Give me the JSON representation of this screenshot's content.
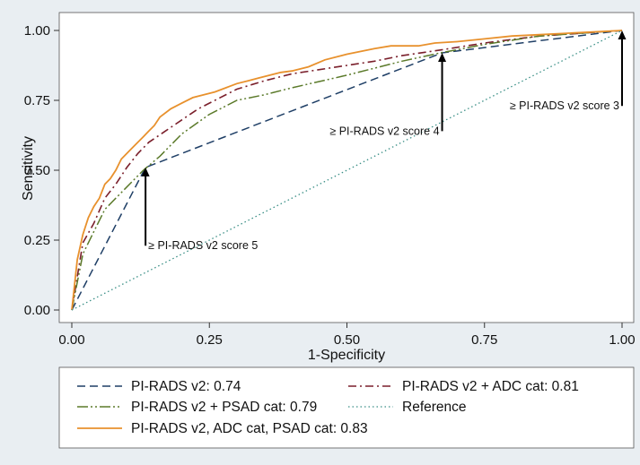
{
  "chart_data": {
    "type": "line",
    "xlabel": "1-Specificity",
    "ylabel": "Sensitivity",
    "xlim": [
      0,
      1
    ],
    "ylim": [
      0,
      1
    ],
    "xticks": [
      "0.00",
      "0.25",
      "0.50",
      "0.75",
      "1.00"
    ],
    "yticks": [
      "0.00",
      "0.25",
      "0.50",
      "0.75",
      "1.00"
    ],
    "grid": false,
    "legend_position": "bottom",
    "series": [
      {
        "name": "PI-RADS v2: 0.74",
        "color": "#1f3f66",
        "style": "dash",
        "x": [
          0,
          0.134,
          0.673,
          1.0
        ],
        "y": [
          0,
          0.51,
          0.92,
          1.0
        ]
      },
      {
        "name": "PI-RADS v2 + ADC cat: 0.81",
        "color": "#7a1f2b",
        "style": "dashdot",
        "x": [
          0,
          0.02,
          0.04,
          0.06,
          0.08,
          0.1,
          0.12,
          0.14,
          0.17,
          0.2,
          0.23,
          0.26,
          0.3,
          0.35,
          0.4,
          0.45,
          0.5,
          0.55,
          0.6,
          0.67,
          0.75,
          0.85,
          1.0
        ],
        "y": [
          0,
          0.24,
          0.31,
          0.4,
          0.45,
          0.51,
          0.56,
          0.6,
          0.64,
          0.68,
          0.72,
          0.75,
          0.79,
          0.82,
          0.845,
          0.86,
          0.875,
          0.89,
          0.91,
          0.93,
          0.955,
          0.98,
          1.0
        ]
      },
      {
        "name": "PI-RADS v2 + PSAD cat: 0.79",
        "color": "#5b7a2a",
        "style": "longdashdot",
        "x": [
          0,
          0.02,
          0.04,
          0.06,
          0.08,
          0.1,
          0.13,
          0.16,
          0.2,
          0.25,
          0.3,
          0.35,
          0.4,
          0.5,
          0.6,
          0.67,
          0.75,
          0.85,
          1.0
        ],
        "y": [
          0,
          0.2,
          0.28,
          0.36,
          0.4,
          0.44,
          0.5,
          0.55,
          0.63,
          0.7,
          0.75,
          0.77,
          0.795,
          0.84,
          0.89,
          0.92,
          0.95,
          0.98,
          1.0
        ]
      },
      {
        "name": "PI-RADS v2, ADC cat, PSAD cat: 0.83",
        "color": "#e8912d",
        "style": "solid",
        "x": [
          0,
          0.01,
          0.02,
          0.03,
          0.04,
          0.05,
          0.06,
          0.07,
          0.08,
          0.09,
          0.1,
          0.11,
          0.12,
          0.13,
          0.14,
          0.15,
          0.16,
          0.18,
          0.2,
          0.22,
          0.24,
          0.26,
          0.28,
          0.3,
          0.32,
          0.34,
          0.36,
          0.38,
          0.4,
          0.43,
          0.46,
          0.5,
          0.55,
          0.58,
          0.6,
          0.63,
          0.66,
          0.7,
          0.75,
          0.8,
          0.85,
          0.9,
          1.0
        ],
        "y": [
          0,
          0.18,
          0.27,
          0.33,
          0.37,
          0.4,
          0.45,
          0.47,
          0.5,
          0.54,
          0.56,
          0.58,
          0.6,
          0.62,
          0.64,
          0.66,
          0.69,
          0.72,
          0.74,
          0.76,
          0.77,
          0.78,
          0.795,
          0.81,
          0.82,
          0.83,
          0.84,
          0.85,
          0.855,
          0.87,
          0.895,
          0.915,
          0.935,
          0.945,
          0.945,
          0.945,
          0.955,
          0.96,
          0.97,
          0.98,
          0.985,
          0.99,
          1.0
        ]
      },
      {
        "name": "Reference",
        "color": "#3a8f86",
        "style": "dot",
        "x": [
          0,
          1
        ],
        "y": [
          0,
          1
        ]
      }
    ],
    "annotations": [
      {
        "text": "≥ PI-RADS v2 score 5",
        "arrow_x": 0.134,
        "arrow_y_from": 0.23,
        "arrow_y_to": 0.51
      },
      {
        "text": "≥ PI-RADS v2 score 4",
        "arrow_x": 0.673,
        "arrow_y_from": 0.64,
        "arrow_y_to": 0.92
      },
      {
        "text": "≥ PI-RADS v2 score 3",
        "arrow_x": 1.0,
        "arrow_y_from": 0.73,
        "arrow_y_to": 1.0
      }
    ],
    "legend_rows": [
      [
        "PI-RADS v2: 0.74",
        "PI-RADS v2 + ADC cat: 0.81"
      ],
      [
        "PI-RADS v2 + PSAD cat: 0.79",
        "Reference"
      ],
      [
        "PI-RADS v2, ADC cat, PSAD cat: 0.83"
      ]
    ]
  }
}
